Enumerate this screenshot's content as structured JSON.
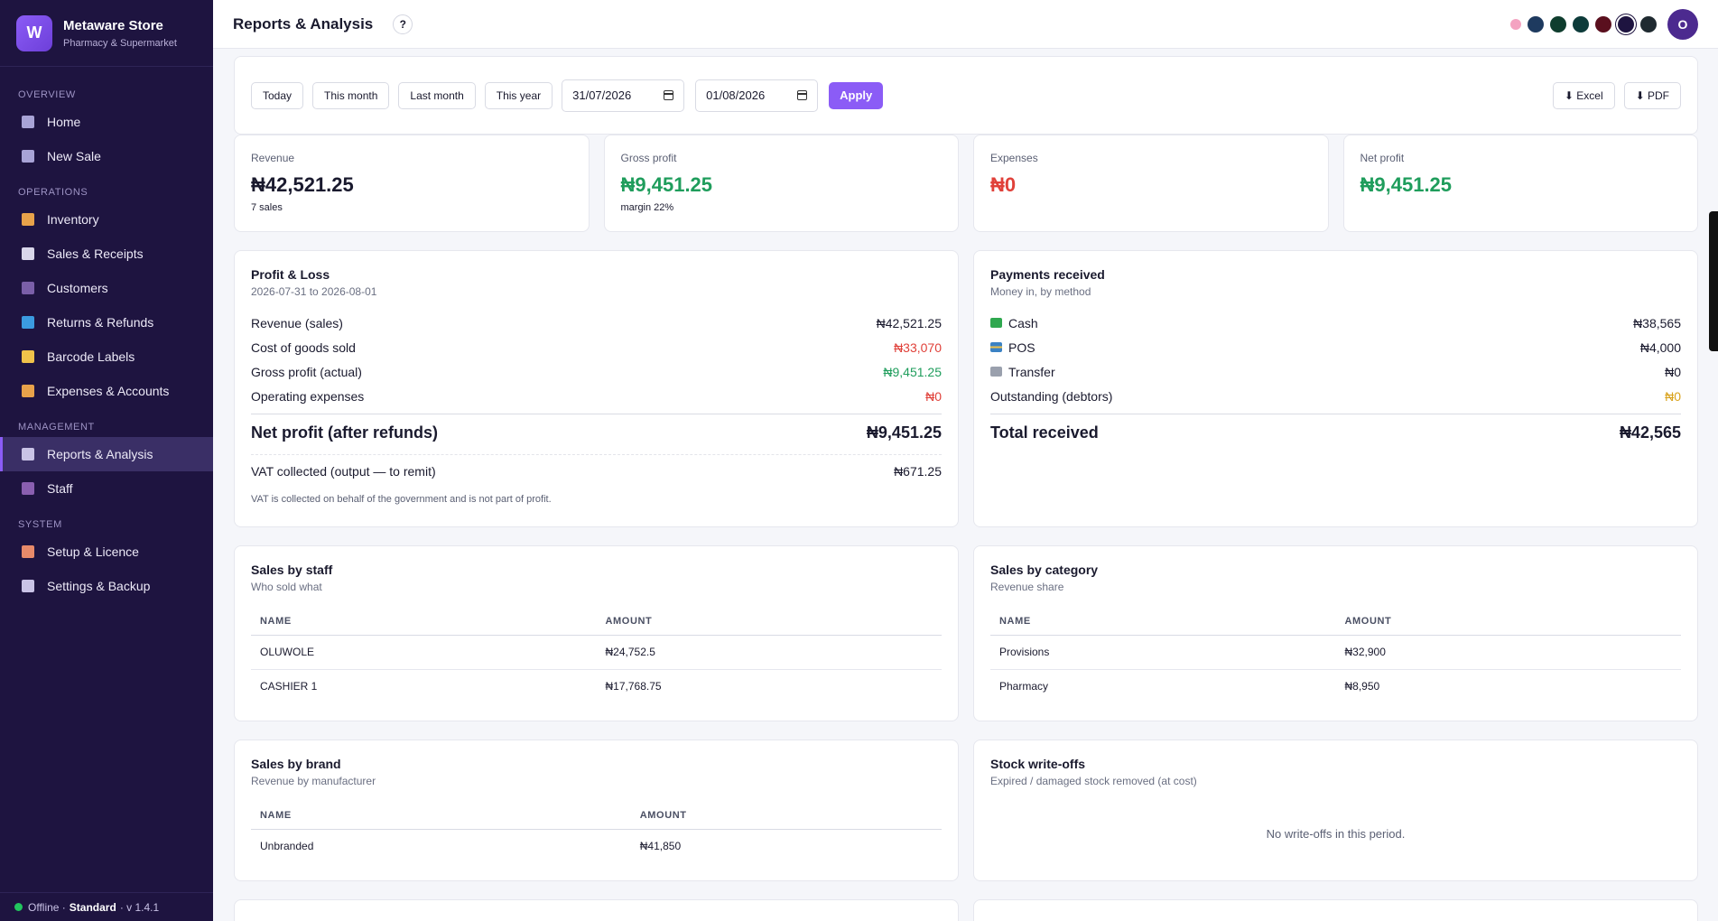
{
  "brand": {
    "logo_letter": "W",
    "name": "Metaware Store",
    "subtitle": "Pharmacy & Supermarket"
  },
  "sidebar": {
    "sections": [
      {
        "title": "OVERVIEW",
        "items": [
          {
            "label": "Home",
            "icon": "home-icon",
            "color": "#a8a3d6"
          },
          {
            "label": "New Sale",
            "icon": "cart-icon",
            "color": "#a8a3d6"
          }
        ]
      },
      {
        "title": "OPERATIONS",
        "items": [
          {
            "label": "Inventory",
            "icon": "box-icon",
            "color": "#e8a24a"
          },
          {
            "label": "Sales & Receipts",
            "icon": "receipt-icon",
            "color": "#d9d6ea"
          },
          {
            "label": "Customers",
            "icon": "user-icon",
            "color": "#7a5fa8"
          },
          {
            "label": "Returns & Refunds",
            "icon": "refresh-icon",
            "color": "#3b9be0"
          },
          {
            "label": "Barcode Labels",
            "icon": "tag-icon",
            "color": "#f0c24a"
          },
          {
            "label": "Expenses & Accounts",
            "icon": "money-bag-icon",
            "color": "#e8a24a"
          }
        ]
      },
      {
        "title": "MANAGEMENT",
        "items": [
          {
            "label": "Reports & Analysis",
            "icon": "chart-icon",
            "color": "#c9c3e6",
            "active": true
          },
          {
            "label": "Staff",
            "icon": "people-icon",
            "color": "#8a5fb0"
          }
        ]
      },
      {
        "title": "SYSTEM",
        "items": [
          {
            "label": "Setup & Licence",
            "icon": "palette-icon",
            "color": "#e88a6a"
          },
          {
            "label": "Settings & Backup",
            "icon": "gear-icon",
            "color": "#c9c3e6"
          }
        ]
      }
    ],
    "footer": {
      "status": "Offline ·",
      "plan": "Standard",
      "version": "· v 1.4.1"
    }
  },
  "header": {
    "title": "Reports & Analysis",
    "help": "?",
    "avatar_letter": "O",
    "theme_colors": [
      "#1e3a5f",
      "#0f3d2e",
      "#0d3b3a",
      "#5a0f1e",
      "#1e1440",
      "#1f2a30"
    ]
  },
  "filters": {
    "today": "Today",
    "this_month": "This month",
    "last_month": "Last month",
    "this_year": "This year",
    "date_from": "31/07/2026",
    "date_to": "01/08/2026",
    "apply": "Apply",
    "excel": "⬇ Excel",
    "pdf": "⬇ PDF"
  },
  "kpis": {
    "revenue": {
      "label": "Revenue",
      "value": "₦42,521.25",
      "sub": "7 sales"
    },
    "gross_profit": {
      "label": "Gross profit",
      "value": "₦9,451.25",
      "sub": "margin 22%"
    },
    "expenses": {
      "label": "Expenses",
      "value": "₦0"
    },
    "net_profit": {
      "label": "Net profit",
      "value": "₦9,451.25"
    }
  },
  "pnl": {
    "title": "Profit & Loss",
    "subtitle": "2026-07-31 to 2026-08-01",
    "revenue_label": "Revenue (sales)",
    "revenue": "₦42,521.25",
    "cogs_label": "Cost of goods sold",
    "cogs": "₦33,070",
    "gross_label": "Gross profit (actual)",
    "gross": "₦9,451.25",
    "opex_label": "Operating expenses",
    "opex": "₦0",
    "net_label": "Net profit (after refunds)",
    "net": "₦9,451.25",
    "vat_label": "VAT collected (output — to remit)",
    "vat": "₦671.25",
    "note": "VAT is collected on behalf of the government and is not part of profit."
  },
  "payments": {
    "title": "Payments received",
    "subtitle": "Money in, by method",
    "cash_label": "Cash",
    "cash": "₦38,565",
    "pos_label": "POS",
    "pos": "₦4,000",
    "transfer_label": "Transfer",
    "transfer": "₦0",
    "outstanding_label": "Outstanding (debtors)",
    "outstanding": "₦0",
    "total_label": "Total received",
    "total": "₦42,565"
  },
  "sales_by_staff": {
    "title": "Sales by staff",
    "subtitle": "Who sold what",
    "col_name": "NAME",
    "col_amount": "AMOUNT",
    "rows": [
      {
        "name": "OLUWOLE",
        "amount": "₦24,752.5"
      },
      {
        "name": "CASHIER 1",
        "amount": "₦17,768.75"
      }
    ]
  },
  "sales_by_category": {
    "title": "Sales by category",
    "subtitle": "Revenue share",
    "col_name": "NAME",
    "col_amount": "AMOUNT",
    "rows": [
      {
        "name": "Provisions",
        "amount": "₦32,900"
      },
      {
        "name": "Pharmacy",
        "amount": "₦8,950"
      }
    ]
  },
  "sales_by_brand": {
    "title": "Sales by brand",
    "subtitle": "Revenue by manufacturer",
    "col_name": "NAME",
    "col_amount": "AMOUNT",
    "rows": [
      {
        "name": "Unbranded",
        "amount": "₦41,850"
      }
    ]
  },
  "write_offs": {
    "title": "Stock write-offs",
    "subtitle": "Expired / damaged stock removed (at cost)",
    "empty": "No write-offs in this period."
  }
}
